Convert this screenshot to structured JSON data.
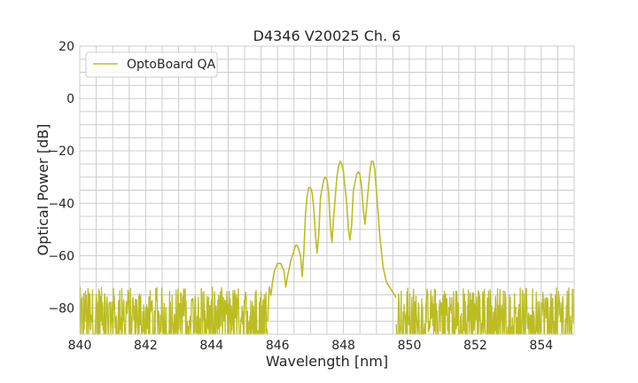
{
  "chart_data": {
    "type": "line",
    "title": "D4346 V20025 Ch. 6",
    "xlabel": "Wavelength [nm]",
    "ylabel": "Optical Power [dB]",
    "xlim": [
      840,
      855
    ],
    "ylim": [
      -90,
      20
    ],
    "xticks": [
      840,
      842,
      844,
      846,
      848,
      850,
      852,
      854
    ],
    "xtick_labels": [
      "840",
      "842",
      "844",
      "846",
      "848",
      "850",
      "852",
      "854"
    ],
    "yticks": [
      20,
      0,
      -20,
      -40,
      -60,
      -80
    ],
    "ytick_labels": [
      "20",
      "0",
      "−20",
      "−40",
      "−60",
      "−80"
    ],
    "x_minor_step": 0.5,
    "y_minor_step": 5,
    "grid": true,
    "legend": "top-left",
    "noise_floor": {
      "range": [
        -90,
        -72
      ],
      "x_regions": [
        [
          840,
          845.7
        ],
        [
          849.6,
          855
        ]
      ]
    },
    "series": [
      {
        "name": "OptoBoard QA",
        "color": "#bcbd22",
        "points": [
          [
            845.7,
            -85
          ],
          [
            845.75,
            -72
          ],
          [
            845.8,
            -75
          ],
          [
            845.85,
            -70
          ],
          [
            845.9,
            -66
          ],
          [
            846.0,
            -63
          ],
          [
            846.1,
            -63
          ],
          [
            846.2,
            -66
          ],
          [
            846.25,
            -72
          ],
          [
            846.3,
            -68
          ],
          [
            846.4,
            -62
          ],
          [
            846.5,
            -58
          ],
          [
            846.55,
            -56
          ],
          [
            846.6,
            -56
          ],
          [
            846.7,
            -60
          ],
          [
            846.75,
            -68
          ],
          [
            846.8,
            -58
          ],
          [
            846.85,
            -44
          ],
          [
            846.9,
            -37
          ],
          [
            846.95,
            -34
          ],
          [
            847.0,
            -34
          ],
          [
            847.05,
            -36
          ],
          [
            847.1,
            -42
          ],
          [
            847.15,
            -52
          ],
          [
            847.2,
            -59
          ],
          [
            847.25,
            -52
          ],
          [
            847.3,
            -38
          ],
          [
            847.4,
            -31
          ],
          [
            847.45,
            -30
          ],
          [
            847.5,
            -31
          ],
          [
            847.55,
            -36
          ],
          [
            847.6,
            -48
          ],
          [
            847.65,
            -55
          ],
          [
            847.7,
            -46
          ],
          [
            847.8,
            -30
          ],
          [
            847.85,
            -26
          ],
          [
            847.9,
            -24
          ],
          [
            847.95,
            -25
          ],
          [
            848.0,
            -28
          ],
          [
            848.1,
            -40
          ],
          [
            848.15,
            -50
          ],
          [
            848.2,
            -54
          ],
          [
            848.25,
            -48
          ],
          [
            848.3,
            -35
          ],
          [
            848.4,
            -29
          ],
          [
            848.45,
            -28
          ],
          [
            848.5,
            -29
          ],
          [
            848.55,
            -34
          ],
          [
            848.6,
            -42
          ],
          [
            848.65,
            -48
          ],
          [
            848.7,
            -42
          ],
          [
            848.8,
            -28
          ],
          [
            848.85,
            -24
          ],
          [
            848.9,
            -24
          ],
          [
            848.95,
            -27
          ],
          [
            849.0,
            -35
          ],
          [
            849.1,
            -52
          ],
          [
            849.2,
            -64
          ],
          [
            849.3,
            -70
          ],
          [
            849.4,
            -72
          ],
          [
            849.5,
            -74
          ],
          [
            849.6,
            -76
          ]
        ]
      }
    ]
  }
}
